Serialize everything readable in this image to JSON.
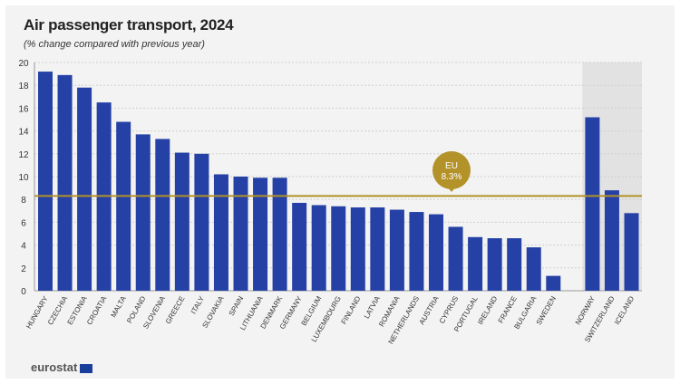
{
  "chart_data": {
    "type": "bar",
    "title": "Air passenger transport, 2024",
    "subtitle": "(% change compared with previous year)",
    "ylim": [
      0,
      20
    ],
    "yticks": [
      0,
      2,
      4,
      6,
      8,
      10,
      12,
      14,
      16,
      18,
      20
    ],
    "grid": true,
    "categories": [
      "HUNGARY",
      "CZECHIA",
      "ESTONIA",
      "CROATIA",
      "MALTA",
      "POLAND",
      "SLOVENIA",
      "GREECE",
      "ITALY",
      "SLOVAKIA",
      "SPAIN",
      "LITHUANIA",
      "DENMARK",
      "GERMANY",
      "BELGIUM",
      "LUXEMBOURG",
      "FINLAND",
      "LATVIA",
      "ROMANIA",
      "NETHERLANDS",
      "AUSTRIA",
      "CYPRUS",
      "PORTUGAL",
      "IRELAND",
      "FRANCE",
      "BULGARIA",
      "SWEDEN",
      "NORWAY",
      "SWITZERLAND",
      "ICELAND"
    ],
    "values": [
      19.2,
      18.9,
      17.8,
      16.5,
      14.8,
      13.7,
      13.3,
      12.1,
      12.0,
      10.2,
      10.0,
      9.9,
      9.9,
      7.7,
      7.5,
      7.4,
      7.3,
      7.3,
      7.1,
      6.9,
      6.7,
      5.6,
      4.7,
      4.6,
      4.6,
      3.8,
      1.3,
      15.2,
      8.8,
      6.8
    ],
    "non_eu_group": [
      "NORWAY",
      "SWITZERLAND",
      "ICELAND"
    ],
    "reference_line": {
      "label": "EU",
      "value_label": "8.3%",
      "value": 8.3
    },
    "colors": {
      "bar": "#2541a5",
      "reference": "#b3922a",
      "non_eu_shade": "#e2e2e2",
      "background": "#f3f3f3"
    }
  },
  "footer": {
    "logo": "eurostat"
  }
}
